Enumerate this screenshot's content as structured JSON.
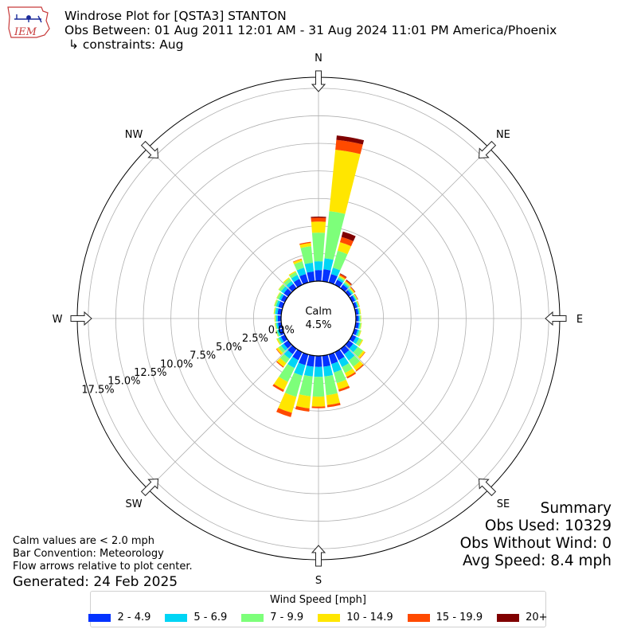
{
  "header": {
    "logo_text": "IEM",
    "title": "Windrose Plot for [QSTA3] STANTON",
    "obs_between": "Obs Between: 01 Aug 2011 12:01 AM - 31 Aug 2024 11:01 PM America/Phoenix",
    "constraints": "↳ constraints: Aug"
  },
  "footer": {
    "calm_note": "Calm values are < 2.0 mph",
    "bar_convention": "Bar Convention: Meteorology",
    "flow_note": "Flow arrows relative to plot center.",
    "generated": "Generated: 24 Feb 2025"
  },
  "summary": {
    "title": "Summary",
    "obs_used": "Obs Used: 10329",
    "obs_without_wind": "Obs Without Wind: 0",
    "avg_speed": "Avg Speed: 8.4 mph"
  },
  "legend": {
    "title": "Wind Speed [mph]",
    "items": [
      {
        "label": "2 - 4.9",
        "color": "#0433ff"
      },
      {
        "label": "5 - 6.9",
        "color": "#00d5f5"
      },
      {
        "label": "7 - 9.9",
        "color": "#7dff7a"
      },
      {
        "label": "10 - 14.9",
        "color": "#ffe600"
      },
      {
        "label": "15 - 19.9",
        "color": "#ff4a00"
      },
      {
        "label": "20+",
        "color": "#800000"
      }
    ]
  },
  "chart_data": {
    "type": "windrose",
    "title": "Windrose Plot for [QSTA3] STANTON",
    "calm_label": "Calm",
    "calm_percent": "4.5%",
    "r_max": 18.5,
    "r_ticks": [
      0,
      2.5,
      5,
      7.5,
      10,
      12.5,
      15,
      17.5
    ],
    "r_tick_labels": [
      "0.0%",
      "2.5%",
      "5.0%",
      "7.5%",
      "10.0%",
      "12.5%",
      "15.0%",
      "17.5%"
    ],
    "direction_labels": [
      "N",
      "NE",
      "E",
      "SE",
      "S",
      "SW",
      "W",
      "NW"
    ],
    "speed_bins": [
      "2 - 4.9",
      "5 - 6.9",
      "7 - 9.9",
      "10 - 14.9",
      "15 - 19.9",
      "20+"
    ],
    "colors": [
      "#0433ff",
      "#00d5f5",
      "#7dff7a",
      "#ffe600",
      "#ff4a00",
      "#800000"
    ],
    "sectors": [
      {
        "dir": 0,
        "values": [
          1.0,
          0.8,
          2.6,
          1.0,
          0.35,
          0.1
        ]
      },
      {
        "dir": 10,
        "values": [
          1.1,
          1.0,
          4.3,
          5.6,
          0.9,
          0.4
        ]
      },
      {
        "dir": 20,
        "values": [
          0.8,
          0.6,
          1.6,
          0.8,
          0.5,
          0.5
        ]
      },
      {
        "dir": 30,
        "values": [
          0.5,
          0.2,
          0.15,
          0.1,
          0.15,
          0.05
        ]
      },
      {
        "dir": 40,
        "values": [
          0.4,
          0.15,
          0.15,
          0.1,
          0.1,
          0.05
        ]
      },
      {
        "dir": 50,
        "values": [
          0.3,
          0.15,
          0.1,
          0.1,
          0.05,
          0.03
        ]
      },
      {
        "dir": 60,
        "values": [
          0.3,
          0.1,
          0.1,
          0.05,
          0.03,
          0.02
        ]
      },
      {
        "dir": 70,
        "values": [
          0.25,
          0.1,
          0.08,
          0.05,
          0.02,
          0.0
        ]
      },
      {
        "dir": 80,
        "values": [
          0.25,
          0.1,
          0.08,
          0.05,
          0.0,
          0.0
        ]
      },
      {
        "dir": 90,
        "values": [
          0.25,
          0.1,
          0.08,
          0.05,
          0.0,
          0.0
        ]
      },
      {
        "dir": 100,
        "values": [
          0.3,
          0.1,
          0.1,
          0.05,
          0.0,
          0.0
        ]
      },
      {
        "dir": 110,
        "values": [
          0.3,
          0.15,
          0.15,
          0.05,
          0.0,
          0.0
        ]
      },
      {
        "dir": 120,
        "values": [
          0.4,
          0.3,
          0.3,
          0.1,
          0.0,
          0.0
        ]
      },
      {
        "dir": 130,
        "values": [
          0.5,
          0.5,
          0.6,
          0.2,
          0.05,
          0.0
        ]
      },
      {
        "dir": 140,
        "values": [
          0.6,
          0.7,
          0.7,
          0.4,
          0.1,
          0.0
        ]
      },
      {
        "dir": 150,
        "values": [
          0.8,
          0.7,
          0.6,
          0.4,
          0.15,
          0.0
        ]
      },
      {
        "dir": 160,
        "values": [
          0.9,
          0.8,
          1.0,
          0.6,
          0.2,
          0.0
        ]
      },
      {
        "dir": 170,
        "values": [
          1.0,
          0.9,
          1.7,
          0.9,
          0.2,
          0.0
        ]
      },
      {
        "dir": 180,
        "values": [
          1.0,
          0.9,
          1.8,
          0.9,
          0.15,
          0.0
        ]
      },
      {
        "dir": 190,
        "values": [
          1.0,
          0.9,
          1.8,
          1.1,
          0.3,
          0.0
        ]
      },
      {
        "dir": 200,
        "values": [
          1.0,
          1.0,
          2.0,
          1.5,
          0.4,
          0.0
        ]
      },
      {
        "dir": 210,
        "values": [
          0.8,
          0.8,
          1.4,
          0.8,
          0.2,
          0.0
        ]
      },
      {
        "dir": 220,
        "values": [
          0.6,
          0.5,
          0.5,
          0.4,
          0.1,
          0.0
        ]
      },
      {
        "dir": 230,
        "values": [
          0.5,
          0.3,
          0.3,
          0.2,
          0.05,
          0.0
        ]
      },
      {
        "dir": 240,
        "values": [
          0.4,
          0.2,
          0.15,
          0.1,
          0.0,
          0.0
        ]
      },
      {
        "dir": 250,
        "values": [
          0.35,
          0.15,
          0.1,
          0.05,
          0.0,
          0.0
        ]
      },
      {
        "dir": 260,
        "values": [
          0.3,
          0.15,
          0.1,
          0.05,
          0.0,
          0.0
        ]
      },
      {
        "dir": 270,
        "values": [
          0.3,
          0.15,
          0.1,
          0.05,
          0.0,
          0.0
        ]
      },
      {
        "dir": 280,
        "values": [
          0.35,
          0.2,
          0.1,
          0.05,
          0.0,
          0.0
        ]
      },
      {
        "dir": 290,
        "values": [
          0.4,
          0.2,
          0.15,
          0.05,
          0.0,
          0.0
        ]
      },
      {
        "dir": 300,
        "values": [
          0.4,
          0.2,
          0.2,
          0.05,
          0.0,
          0.0
        ]
      },
      {
        "dir": 310,
        "values": [
          0.5,
          0.3,
          0.25,
          0.05,
          0.0,
          0.0
        ]
      },
      {
        "dir": 320,
        "values": [
          0.5,
          0.3,
          0.3,
          0.1,
          0.0,
          0.0
        ]
      },
      {
        "dir": 330,
        "values": [
          0.6,
          0.4,
          0.3,
          0.1,
          0.0,
          0.0
        ]
      },
      {
        "dir": 340,
        "values": [
          0.8,
          0.6,
          0.6,
          0.2,
          0.05,
          0.0
        ]
      },
      {
        "dir": 350,
        "values": [
          0.9,
          0.8,
          1.5,
          0.3,
          0.1,
          0.0
        ]
      }
    ]
  }
}
